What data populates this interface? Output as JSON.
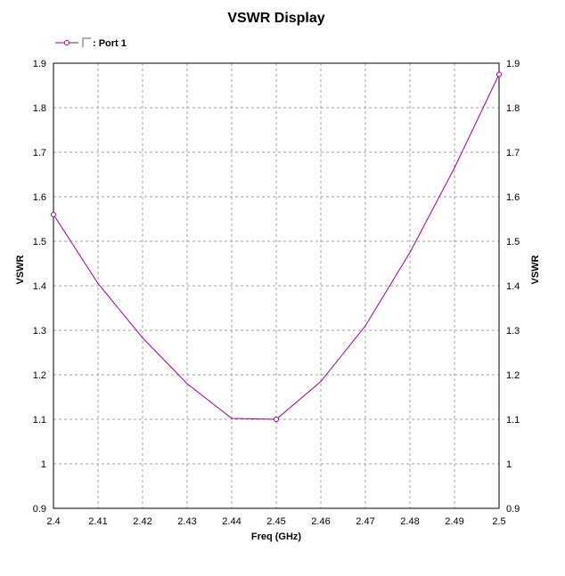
{
  "chart_data": {
    "type": "line",
    "title": "VSWR Display",
    "xlabel": "Freq (GHz)",
    "ylabel": "VSWR",
    "ylabel_right": "VSWR",
    "xlim": [
      2.4,
      2.5
    ],
    "ylim": [
      0.9,
      1.9
    ],
    "x_ticks": [
      "2.4",
      "2.41",
      "2.42",
      "2.43",
      "2.44",
      "2.45",
      "2.46",
      "2.47",
      "2.48",
      "2.49",
      "2.5"
    ],
    "y_ticks": [
      "0.9",
      "1",
      "1.1",
      "1.2",
      "1.3",
      "1.4",
      "1.5",
      "1.6",
      "1.7",
      "1.8",
      "1.9"
    ],
    "grid": true,
    "legend_position": "top-left",
    "series": [
      {
        "name": ": Port 1",
        "color": "#990099",
        "marker_x": [
          2.4,
          2.45,
          2.5
        ],
        "marker_y": [
          1.56,
          1.1,
          1.875
        ],
        "x": [
          2.4,
          2.41,
          2.42,
          2.43,
          2.44,
          2.45,
          2.46,
          2.47,
          2.48,
          2.49,
          2.5
        ],
        "y": [
          1.56,
          1.405,
          1.283,
          1.18,
          1.102,
          1.1,
          1.185,
          1.31,
          1.475,
          1.665,
          1.875
        ]
      }
    ]
  }
}
